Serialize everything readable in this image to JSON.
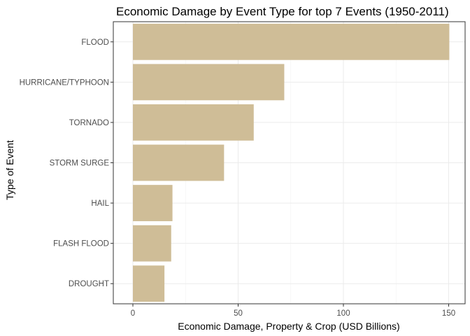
{
  "chart_data": {
    "type": "bar",
    "orientation": "horizontal",
    "title": "Economic Damage by Event Type for top 7 Events (1950-2011)",
    "xlabel": "Economic Damage, Property & Crop (USD Billions)",
    "ylabel": "Type of Event",
    "categories": [
      "FLOOD",
      "HURRICANE/TYPHOON",
      "TORNADO",
      "STORM SURGE",
      "HAIL",
      "FLASH FLOOD",
      "DROUGHT"
    ],
    "values": [
      150.3,
      71.9,
      57.4,
      43.3,
      18.8,
      18.2,
      15.0
    ],
    "xlim": [
      -9.3,
      157.8
    ],
    "xticks": [
      0,
      50,
      100,
      150
    ],
    "xtick_labels": [
      "0",
      "50",
      "100",
      "150"
    ],
    "grid": true,
    "legend": "none",
    "bar_color": "#CFBD97"
  }
}
